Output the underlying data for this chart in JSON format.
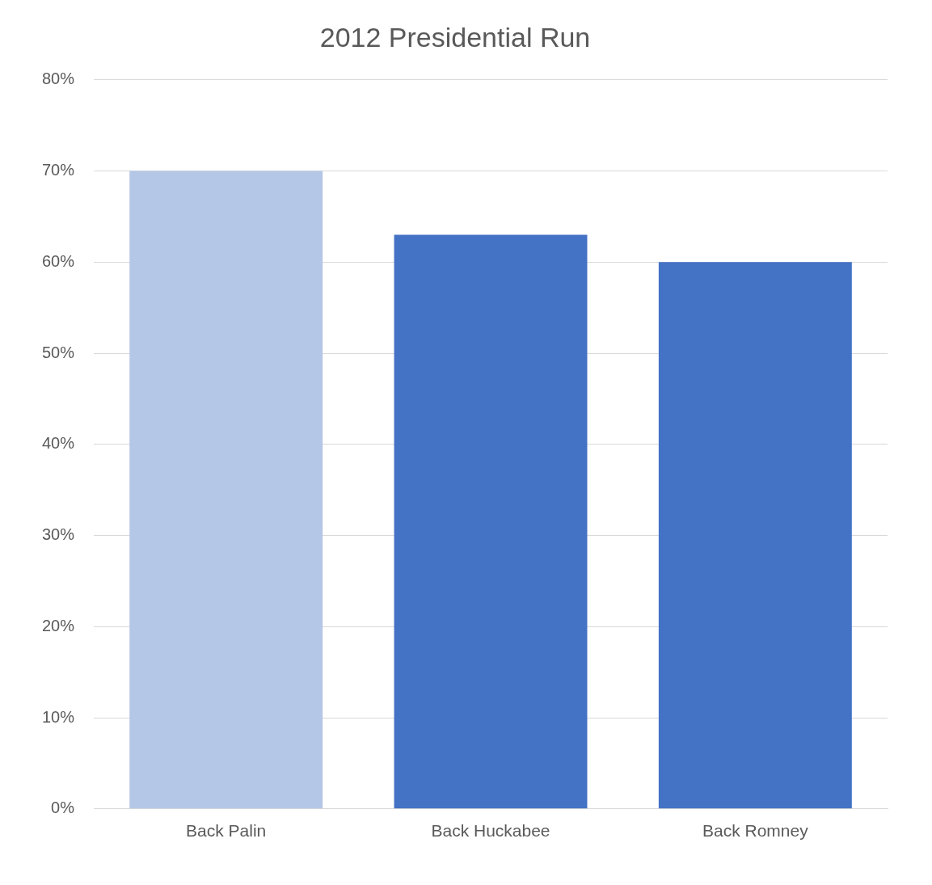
{
  "chart_data": {
    "type": "bar",
    "title": "2012 Presidential Run",
    "categories": [
      "Back Palin",
      "Back Huckabee",
      "Back Romney"
    ],
    "values": [
      70,
      63,
      60
    ],
    "colors": [
      "#b4c7e7",
      "#4472c4",
      "#4472c4"
    ],
    "ylim": [
      0,
      80
    ],
    "yticks": [
      {
        "value": 0,
        "label": "0%"
      },
      {
        "value": 10,
        "label": "10%"
      },
      {
        "value": 20,
        "label": "20%"
      },
      {
        "value": 30,
        "label": "30%"
      },
      {
        "value": 40,
        "label": "40%"
      },
      {
        "value": 50,
        "label": "50%"
      },
      {
        "value": 60,
        "label": "60%"
      },
      {
        "value": 70,
        "label": "70%"
      },
      {
        "value": 80,
        "label": "80%"
      }
    ],
    "grid": "y",
    "legend": false
  }
}
